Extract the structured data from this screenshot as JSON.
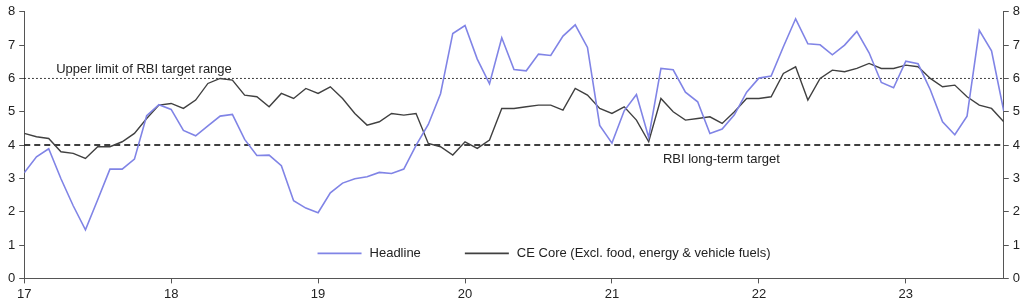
{
  "chart_data": {
    "type": "line",
    "categories": [
      "17",
      null,
      null,
      null,
      null,
      null,
      null,
      null,
      null,
      null,
      null,
      null,
      "18",
      null,
      null,
      null,
      null,
      null,
      null,
      null,
      null,
      null,
      null,
      null,
      "19",
      null,
      null,
      null,
      null,
      null,
      null,
      null,
      null,
      null,
      null,
      null,
      "20",
      null,
      null,
      null,
      null,
      null,
      null,
      null,
      null,
      null,
      null,
      null,
      "21",
      null,
      null,
      null,
      null,
      null,
      null,
      null,
      null,
      null,
      null,
      null,
      "22",
      null,
      null,
      null,
      null,
      null,
      null,
      null,
      null,
      null,
      null,
      null,
      "23",
      null,
      null,
      null,
      null,
      null,
      null,
      null,
      null
    ],
    "series": [
      {
        "name": "Headline",
        "color": "#8084e6",
        "values": [
          3.17,
          3.65,
          3.89,
          2.99,
          2.18,
          1.46,
          2.36,
          3.28,
          3.28,
          3.58,
          4.88,
          5.21,
          5.07,
          4.44,
          4.28,
          4.58,
          4.87,
          4.92,
          4.17,
          3.69,
          3.7,
          3.38,
          2.33,
          2.11,
          1.97,
          2.57,
          2.86,
          2.99,
          3.05,
          3.18,
          3.15,
          3.28,
          3.99,
          4.62,
          5.54,
          7.35,
          7.59,
          6.58,
          5.84,
          7.22,
          6.27,
          6.23,
          6.73,
          6.69,
          7.27,
          7.61,
          6.93,
          4.59,
          4.06,
          5.03,
          5.52,
          4.23,
          6.3,
          6.26,
          5.59,
          5.3,
          4.35,
          4.48,
          4.91,
          5.59,
          6.01,
          6.07,
          6.95,
          7.79,
          7.04,
          7.01,
          6.71,
          7.0,
          7.41,
          6.77,
          5.88,
          5.72,
          6.52,
          6.44,
          5.66,
          4.7,
          4.31,
          4.87,
          7.44,
          6.83,
          5.02
        ]
      },
      {
        "name": "CE Core (Excl. food, energy & vehicle fuels)",
        "color": "#404040",
        "values": [
          4.35,
          4.25,
          4.2,
          3.8,
          3.75,
          3.6,
          3.95,
          3.95,
          4.1,
          4.35,
          4.8,
          5.2,
          5.25,
          5.1,
          5.35,
          5.85,
          6.0,
          5.95,
          5.5,
          5.45,
          5.15,
          5.55,
          5.4,
          5.7,
          5.55,
          5.75,
          5.4,
          4.95,
          4.6,
          4.7,
          4.95,
          4.9,
          4.95,
          4.05,
          3.95,
          3.7,
          4.1,
          3.9,
          4.15,
          5.1,
          5.1,
          5.15,
          5.2,
          5.2,
          5.05,
          5.7,
          5.5,
          5.1,
          4.95,
          5.15,
          4.75,
          4.1,
          5.4,
          5.0,
          4.75,
          4.8,
          4.85,
          4.65,
          5.0,
          5.4,
          5.4,
          5.45,
          6.15,
          6.35,
          5.35,
          6.0,
          6.25,
          6.2,
          6.3,
          6.45,
          6.3,
          6.3,
          6.4,
          6.35,
          6.0,
          5.75,
          5.8,
          5.45,
          5.2,
          5.1,
          4.7
        ]
      }
    ],
    "ylim": [
      0,
      8
    ],
    "yticks": [
      0,
      1,
      2,
      3,
      4,
      5,
      6,
      7,
      8
    ],
    "y2lim": [
      0,
      8
    ],
    "y2ticks": [
      0,
      1,
      2,
      3,
      4,
      5,
      6,
      7,
      8
    ],
    "annotations": [
      {
        "y": 6,
        "label": "Upper limit of RBI target range",
        "line_style": "dotted"
      },
      {
        "y": 4,
        "label": "RBI long-term target",
        "line_style": "dashed"
      }
    ],
    "legend": "bottom",
    "grid": false
  }
}
